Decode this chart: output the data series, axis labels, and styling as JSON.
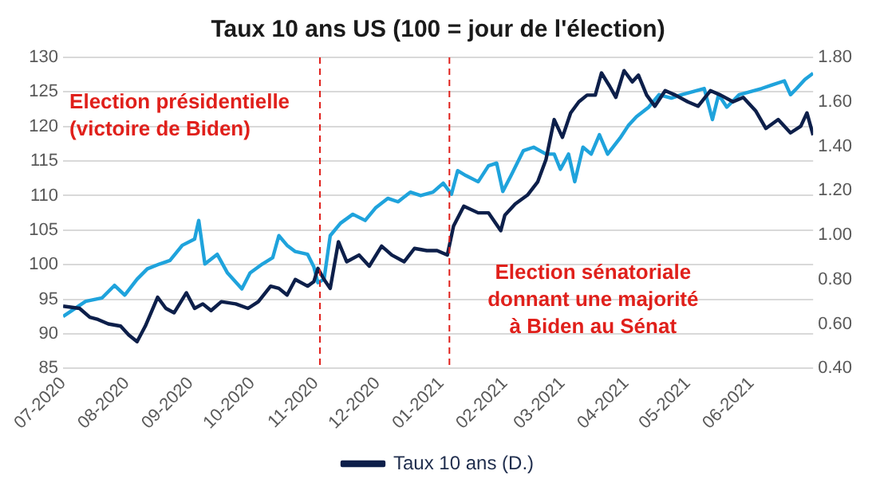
{
  "chart_data": {
    "type": "line",
    "title": "Taux 10 ans US (100 = jour de l'élection)",
    "xlim": [
      "2020-07-01",
      "2021-07-01"
    ],
    "xticks": [
      {
        "value": "2020-07-01",
        "label": "07-2020"
      },
      {
        "value": "2020-08-01",
        "label": "08-2020"
      },
      {
        "value": "2020-09-01",
        "label": "09-2020"
      },
      {
        "value": "2020-10-01",
        "label": "10-2020"
      },
      {
        "value": "2020-11-01",
        "label": "11-2020"
      },
      {
        "value": "2020-12-01",
        "label": "12-2020"
      },
      {
        "value": "2021-01-01",
        "label": "01-2021"
      },
      {
        "value": "2021-02-01",
        "label": "02-2021"
      },
      {
        "value": "2021-03-01",
        "label": "03-2021"
      },
      {
        "value": "2021-04-01",
        "label": "04-2021"
      },
      {
        "value": "2021-05-01",
        "label": "05-2021"
      },
      {
        "value": "2021-06-01",
        "label": "06-2021"
      }
    ],
    "ylim": [
      85,
      130
    ],
    "yticks": [
      85,
      90,
      95,
      100,
      105,
      110,
      115,
      120,
      125,
      130
    ],
    "y2lim": [
      0.4,
      1.8
    ],
    "y2ticks": [
      {
        "value": 0.4,
        "label": "0.40"
      },
      {
        "value": 0.6,
        "label": "0.60"
      },
      {
        "value": 0.8,
        "label": "0.80"
      },
      {
        "value": 1.0,
        "label": "1.00"
      },
      {
        "value": 1.2,
        "label": "1.20"
      },
      {
        "value": 1.4,
        "label": "1.40"
      },
      {
        "value": 1.6,
        "label": "1.60"
      },
      {
        "value": 1.8,
        "label": "1.80"
      }
    ],
    "grid": "y",
    "legend": "bottom",
    "marker": "none",
    "line_style": "solid",
    "series": [
      {
        "color": "#1fa3dc",
        "x": [
          "2020-07-01",
          "2020-07-12",
          "2020-07-20",
          "2020-07-26",
          "2020-07-31",
          "2020-08-06",
          "2020-08-11",
          "2020-08-17",
          "2020-08-22",
          "2020-08-28",
          "2020-09-03",
          "2020-09-05",
          "2020-09-08",
          "2020-09-14",
          "2020-09-19",
          "2020-09-26",
          "2020-09-30",
          "2020-10-06",
          "2020-10-11",
          "2020-10-14",
          "2020-10-18",
          "2020-10-22",
          "2020-10-28",
          "2020-10-31",
          "2020-11-02",
          "2020-11-05",
          "2020-11-08",
          "2020-11-13",
          "2020-11-19",
          "2020-11-25",
          "2020-11-30",
          "2020-12-06",
          "2020-12-11",
          "2020-12-17",
          "2020-12-22",
          "2020-12-28",
          "2021-01-02",
          "2021-01-06",
          "2021-01-09",
          "2021-01-13",
          "2021-01-19",
          "2021-01-24",
          "2021-01-28",
          "2021-01-31",
          "2021-02-04",
          "2021-02-10",
          "2021-02-15",
          "2021-02-21",
          "2021-02-25",
          "2021-02-28",
          "2021-03-04",
          "2021-03-07",
          "2021-03-11",
          "2021-03-15",
          "2021-03-19",
          "2021-03-23",
          "2021-03-29",
          "2021-04-02",
          "2021-04-06",
          "2021-04-12",
          "2021-04-17",
          "2021-04-23",
          "2021-04-28",
          "2021-05-03",
          "2021-05-09",
          "2021-05-13",
          "2021-05-16",
          "2021-05-20",
          "2021-05-26",
          "2021-05-31",
          "2021-06-06",
          "2021-06-11",
          "2021-06-17",
          "2021-06-20",
          "2021-06-23",
          "2021-06-27",
          "2021-07-01"
        ],
        "values": [
          92.5,
          94.7,
          95.2,
          97,
          95.6,
          97.9,
          99.4,
          100.1,
          100.6,
          102.8,
          103.7,
          106.4,
          100.1,
          101.5,
          98.8,
          96.5,
          98.8,
          100.1,
          101,
          104.2,
          102.8,
          101.9,
          101.5,
          99.7,
          97.4,
          97.9,
          104.2,
          106,
          107.3,
          106.4,
          108.2,
          109.6,
          109.1,
          110.5,
          110,
          110.5,
          111.8,
          110.2,
          113.6,
          112.9,
          112,
          114.3,
          114.7,
          110.6,
          112.9,
          116.5,
          117,
          116,
          116,
          113.8,
          116,
          112,
          117,
          116,
          118.8,
          116,
          118.3,
          120.1,
          121.4,
          122.8,
          124.6,
          124.1,
          124.6,
          125,
          125.5,
          121,
          124.6,
          122.8,
          124.6,
          125,
          125.5,
          126,
          126.6,
          124.6,
          125.5,
          126.8,
          127.7
        ]
      },
      {
        "name": "Taux 10 ans (D.)",
        "color": "#0d1f4a",
        "axis": "y2",
        "x": [
          "2020-07-01",
          "2020-07-09",
          "2020-07-14",
          "2020-07-18",
          "2020-07-23",
          "2020-07-29",
          "2020-08-02",
          "2020-08-06",
          "2020-08-10",
          "2020-08-16",
          "2020-08-20",
          "2020-08-24",
          "2020-08-30",
          "2020-09-03",
          "2020-09-07",
          "2020-09-11",
          "2020-09-16",
          "2020-09-23",
          "2020-09-29",
          "2020-10-04",
          "2020-10-10",
          "2020-10-14",
          "2020-10-18",
          "2020-10-22",
          "2020-10-28",
          "2020-10-31",
          "2020-11-02",
          "2020-11-05",
          "2020-11-08",
          "2020-11-12",
          "2020-11-16",
          "2020-11-22",
          "2020-11-27",
          "2020-12-03",
          "2020-12-08",
          "2020-12-14",
          "2020-12-19",
          "2020-12-25",
          "2020-12-30",
          "2021-01-04",
          "2021-01-07",
          "2021-01-12",
          "2021-01-19",
          "2021-01-24",
          "2021-01-30",
          "2021-02-01",
          "2021-02-06",
          "2021-02-12",
          "2021-02-17",
          "2021-02-21",
          "2021-02-25",
          "2021-03-01",
          "2021-03-05",
          "2021-03-09",
          "2021-03-13",
          "2021-03-17",
          "2021-03-20",
          "2021-03-24",
          "2021-03-27",
          "2021-03-31",
          "2021-04-04",
          "2021-04-07",
          "2021-04-11",
          "2021-04-15",
          "2021-04-20",
          "2021-04-25",
          "2021-05-01",
          "2021-05-06",
          "2021-05-12",
          "2021-05-17",
          "2021-05-23",
          "2021-05-28",
          "2021-06-03",
          "2021-06-08",
          "2021-06-14",
          "2021-06-20",
          "2021-06-25",
          "2021-06-28",
          "2021-07-01"
        ],
        "values": [
          0.68,
          0.67,
          0.63,
          0.62,
          0.6,
          0.59,
          0.55,
          0.52,
          0.59,
          0.72,
          0.67,
          0.65,
          0.74,
          0.67,
          0.69,
          0.66,
          0.7,
          0.69,
          0.67,
          0.7,
          0.77,
          0.76,
          0.73,
          0.8,
          0.77,
          0.79,
          0.85,
          0.8,
          0.76,
          0.97,
          0.88,
          0.91,
          0.86,
          0.95,
          0.91,
          0.88,
          0.94,
          0.93,
          0.93,
          0.91,
          1.04,
          1.13,
          1.1,
          1.1,
          1.02,
          1.09,
          1.14,
          1.18,
          1.24,
          1.34,
          1.52,
          1.44,
          1.55,
          1.6,
          1.63,
          1.63,
          1.73,
          1.67,
          1.62,
          1.74,
          1.69,
          1.72,
          1.63,
          1.58,
          1.65,
          1.63,
          1.6,
          1.58,
          1.65,
          1.63,
          1.6,
          1.62,
          1.56,
          1.48,
          1.52,
          1.46,
          1.49,
          1.55,
          1.45
        ]
      }
    ],
    "ref_lines": [
      {
        "axis": "x",
        "value": "2020-11-03",
        "color": "#e0201b",
        "line_style": "dashed"
      },
      {
        "axis": "x",
        "value": "2021-01-05",
        "color": "#e0201b",
        "line_style": "dashed"
      }
    ],
    "annotations": [
      "Election présidentielle\n(victoire de Biden)",
      "Election sénatoriale\ndonnant une majorité\nà Biden au Sénat"
    ]
  }
}
